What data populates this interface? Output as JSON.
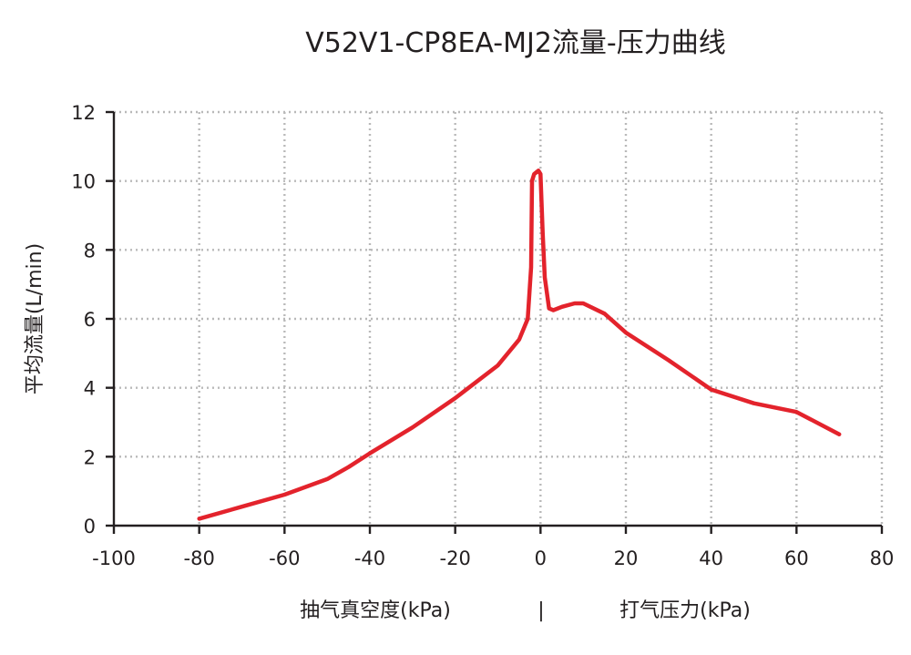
{
  "chart_data": {
    "type": "line",
    "title": "V52V1-CP8EA-MJ2流量-压力曲线",
    "ylabel": "平均流量(L/min)",
    "xlabel_left": "抽气真空度(kPa)",
    "xlabel_separator": "|",
    "xlabel_right": "打气压力(kPa)",
    "xlim": [
      -100,
      80
    ],
    "ylim": [
      0,
      12
    ],
    "x_ticks": [
      -100,
      -80,
      -60,
      -40,
      -20,
      0,
      20,
      40,
      60,
      80
    ],
    "x_tick_labels": [
      "-100",
      "-80",
      "-60",
      "-40",
      "-20",
      "0",
      "20",
      "40",
      "60",
      "80"
    ],
    "y_ticks": [
      0,
      2,
      4,
      6,
      8,
      10,
      12
    ],
    "y_tick_labels": [
      "0",
      "2",
      "4",
      "6",
      "8",
      "10",
      "12"
    ],
    "grid": true,
    "colors": {
      "series": "#e3232c",
      "axis": "#231f20",
      "grid": "#b9b9b9"
    },
    "series": [
      {
        "x": [
          -80,
          -70,
          -60,
          -50,
          -45,
          -40,
          -30,
          -20,
          -10,
          -5,
          -3,
          -2.2,
          -2,
          -1.5,
          -1,
          -0.5,
          0,
          0.5,
          1,
          2,
          3,
          5,
          8,
          10,
          15,
          20,
          30,
          40,
          50,
          60,
          70
        ],
        "y": [
          0.2,
          0.55,
          0.9,
          1.35,
          1.7,
          2.1,
          2.85,
          3.7,
          4.65,
          5.4,
          6.0,
          7.5,
          10.0,
          10.2,
          10.25,
          10.3,
          10.2,
          8.5,
          7.2,
          6.3,
          6.25,
          6.35,
          6.45,
          6.45,
          6.15,
          5.6,
          4.8,
          3.95,
          3.55,
          3.3,
          2.65
        ]
      }
    ]
  }
}
